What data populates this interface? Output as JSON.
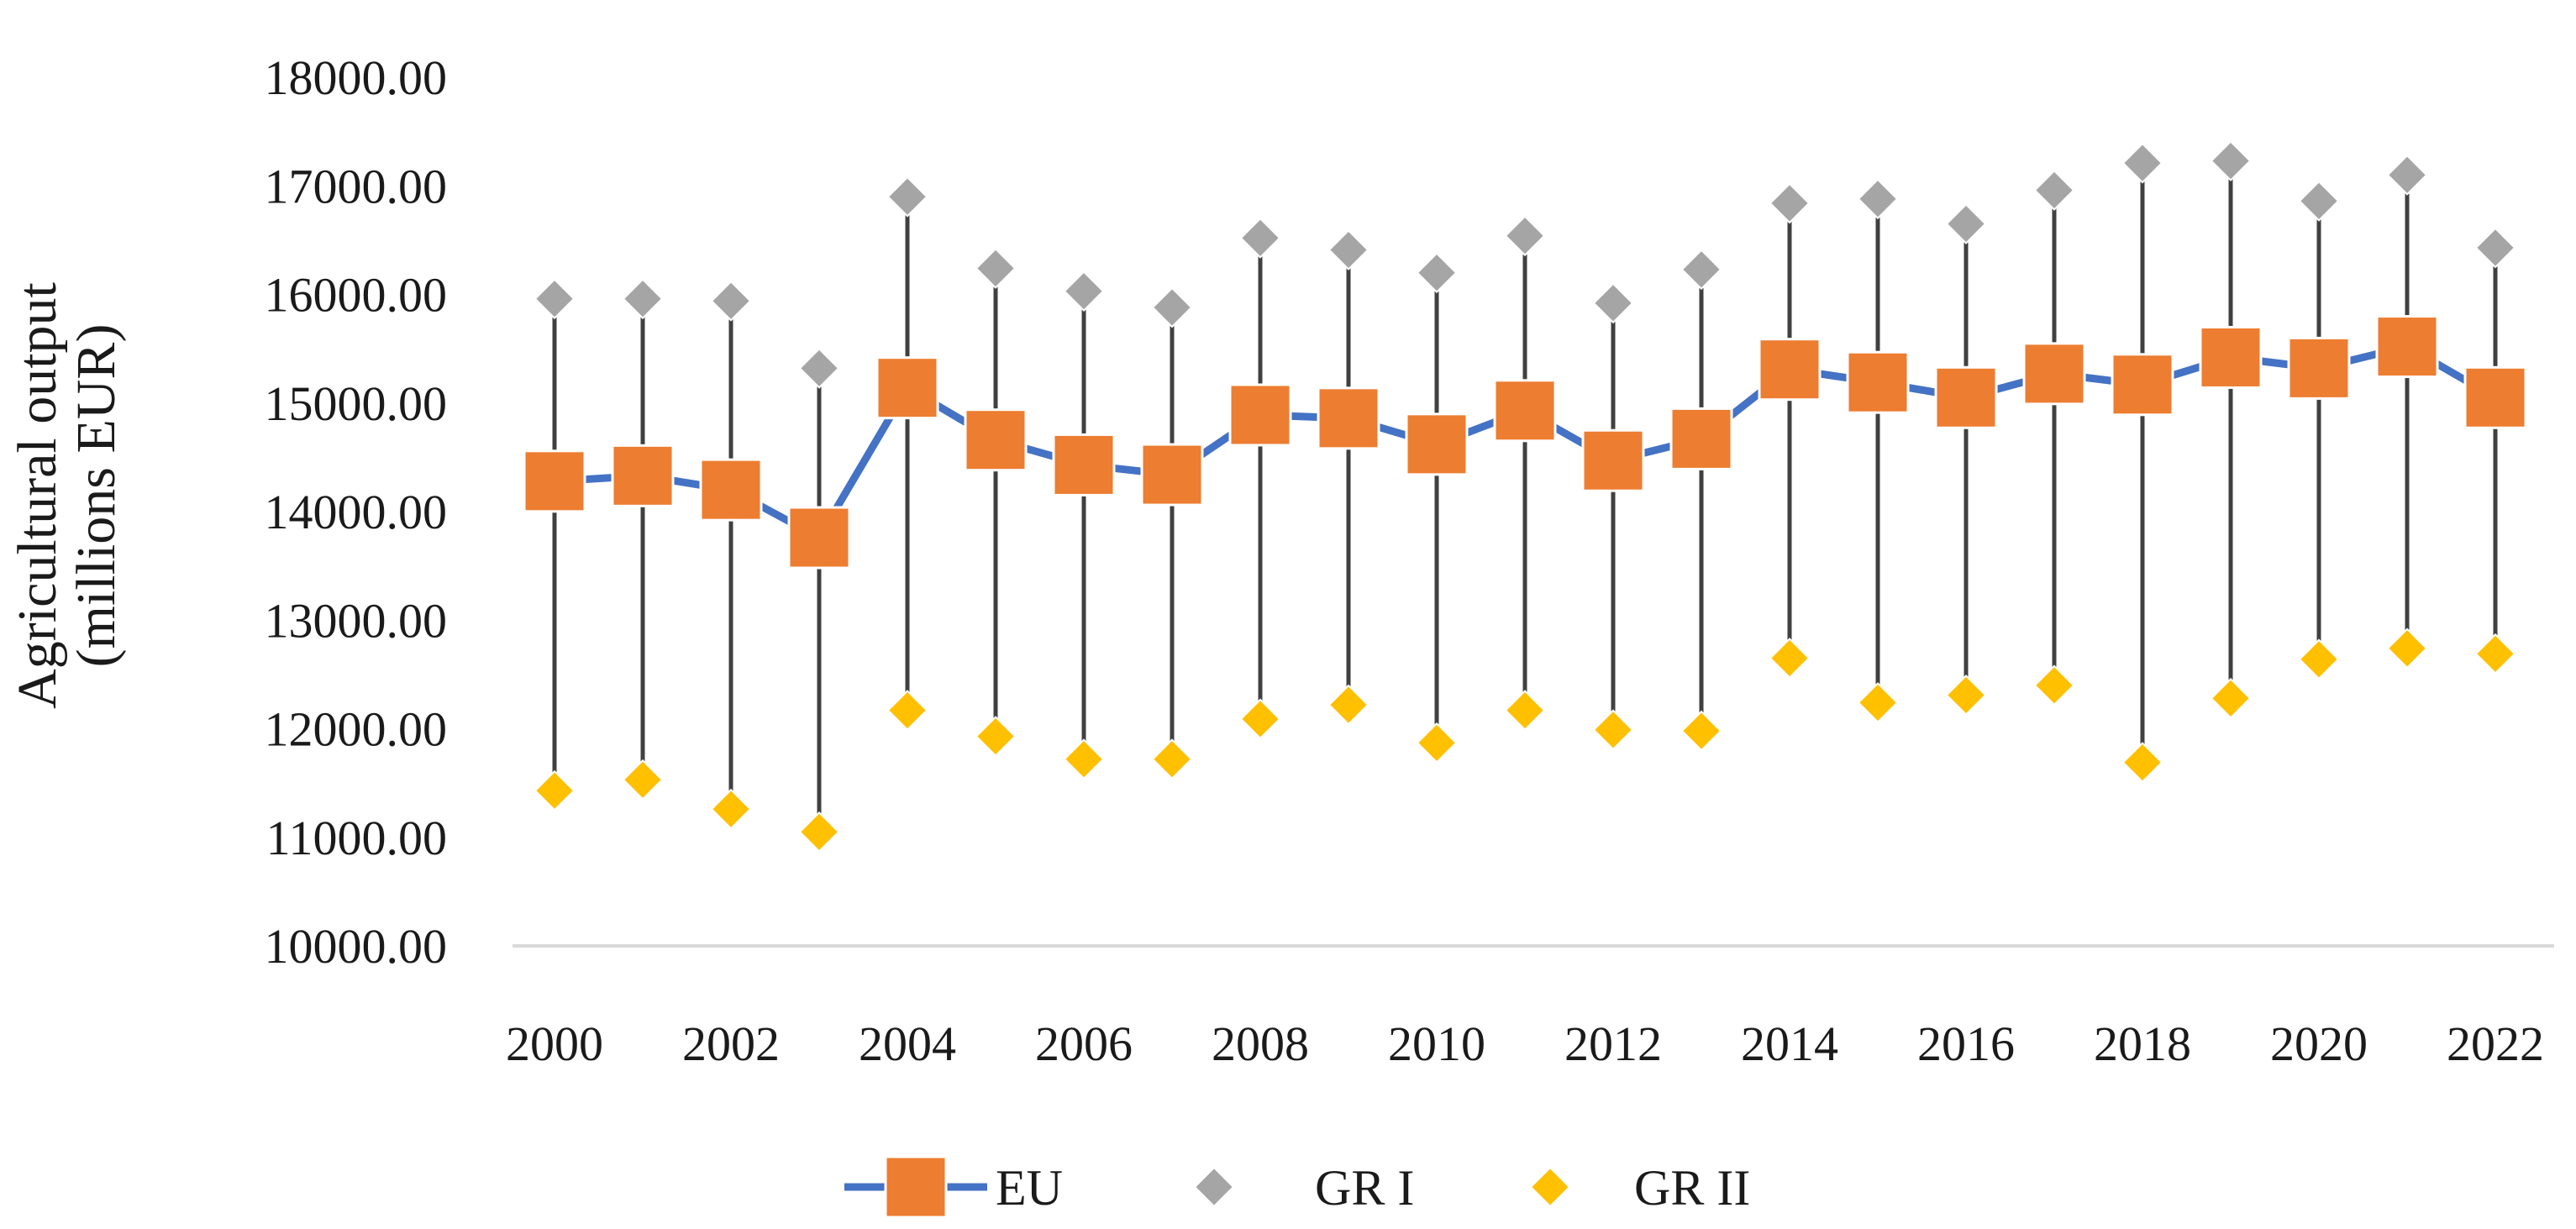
{
  "chart_data": {
    "type": "line",
    "title": "",
    "xlabel": "",
    "ylabel_line1": "Agricultural output",
    "ylabel_line2": "(millions EUR)",
    "ylim": [
      10000,
      18000
    ],
    "yticks": [
      10000,
      11000,
      12000,
      13000,
      14000,
      15000,
      16000,
      17000,
      18000
    ],
    "ytick_labels": [
      "10000.00",
      "11000.00",
      "12000.00",
      "13000.00",
      "14000.00",
      "15000.00",
      "16000.00",
      "17000.00",
      "18000.00"
    ],
    "x": [
      2000,
      2001,
      2002,
      2003,
      2004,
      2005,
      2006,
      2007,
      2008,
      2009,
      2010,
      2011,
      2012,
      2013,
      2014,
      2015,
      2016,
      2017,
      2018,
      2019,
      2020,
      2021,
      2022
    ],
    "xtick_labels": [
      "2000",
      "2002",
      "2004",
      "2006",
      "2008",
      "2010",
      "2012",
      "2014",
      "2016",
      "2018",
      "2020",
      "2022"
    ],
    "legend_position": "bottom",
    "series": [
      {
        "name": "EU",
        "marker": "square",
        "color": "#ED7D31",
        "line_color": "#4472C4",
        "values": [
          14280,
          14330,
          14200,
          13760,
          15140,
          14660,
          14430,
          14340,
          14890,
          14860,
          14620,
          14930,
          14470,
          14670,
          15310,
          15190,
          15050,
          15270,
          15170,
          15420,
          15320,
          15520,
          15050
        ]
      },
      {
        "name": "GR I",
        "marker": "diamond",
        "color": "#A5A5A5",
        "values": [
          15960,
          15960,
          15940,
          15320,
          16900,
          16240,
          16030,
          15880,
          16520,
          16410,
          16200,
          16540,
          15920,
          16230,
          16840,
          16880,
          16650,
          16960,
          17210,
          17230,
          16860,
          17100,
          16430
        ]
      },
      {
        "name": "GR II",
        "marker": "diamond",
        "color": "#FFC000",
        "values": [
          11430,
          11530,
          11260,
          11050,
          12170,
          11930,
          11720,
          11720,
          12090,
          12220,
          11870,
          12170,
          11990,
          11980,
          12650,
          12240,
          12310,
          12400,
          11690,
          12280,
          12640,
          12740,
          12690
        ]
      }
    ],
    "range_line_color": "#404040"
  }
}
